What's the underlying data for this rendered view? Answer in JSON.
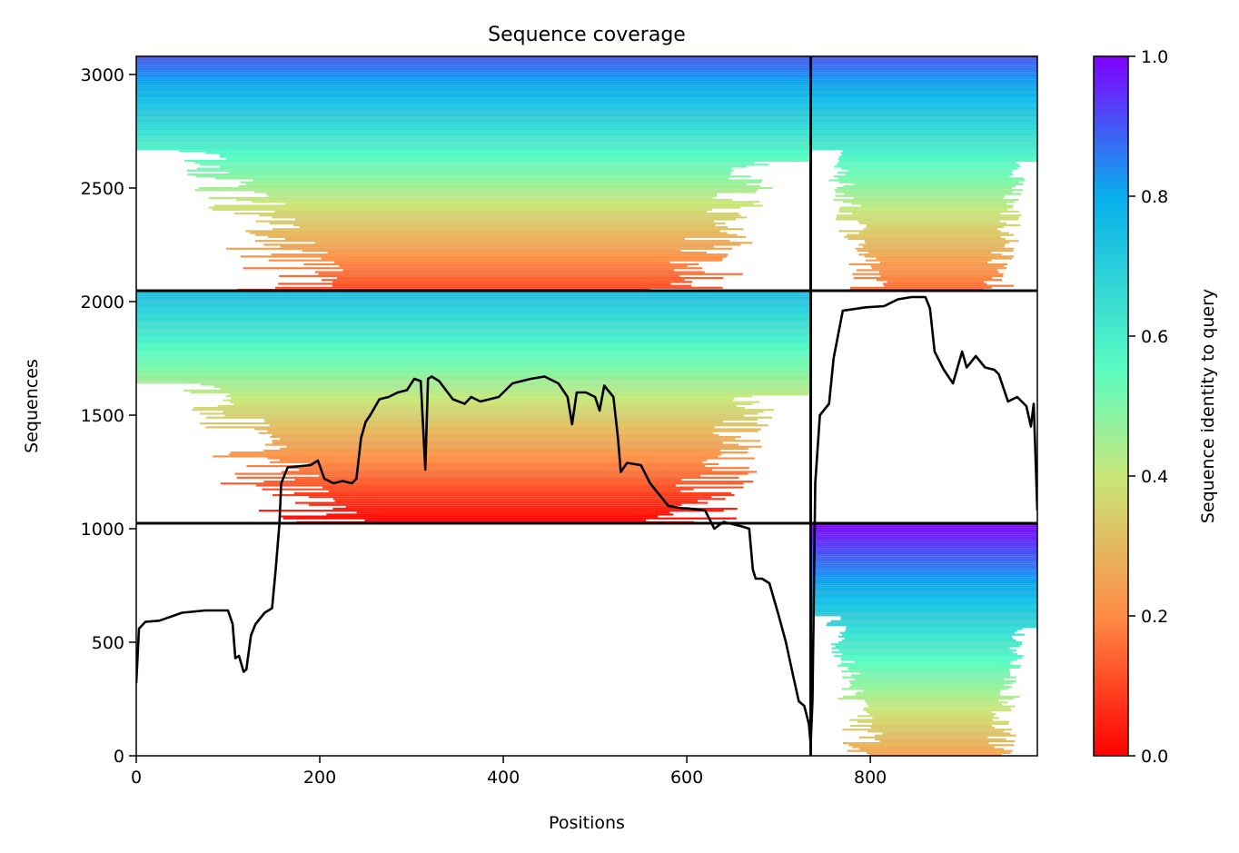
{
  "chart_data": {
    "type": "heatmap",
    "title": "Sequence coverage",
    "xlabel": "Positions",
    "ylabel": "Sequences",
    "xlim": [
      0,
      982
    ],
    "ylim": [
      0,
      3080
    ],
    "x_ticks": [
      0,
      200,
      400,
      600,
      800
    ],
    "y_ticks": [
      0,
      500,
      1000,
      1500,
      2000,
      2500,
      3000
    ],
    "grid": false,
    "colorbar": {
      "label": "Sequence identity to query",
      "range": [
        0.0,
        1.0
      ],
      "ticks": [
        "0.0",
        "0.2",
        "0.4",
        "0.6",
        "0.8",
        "1.0"
      ],
      "colormap": "rainbow_r",
      "colors": [
        "#ff0000",
        "#ff8c45",
        "#c8e67a",
        "#5afcc0",
        "#08aeed",
        "#8000ff"
      ]
    },
    "chain_boundaries": {
      "x": [
        735
      ],
      "y": [
        1024,
        2048
      ]
    },
    "msa_blocks": [
      {
        "name": "chain-A-paired",
        "x_range": [
          0,
          735
        ],
        "y_range": [
          2048,
          3080
        ],
        "identity_range": [
          0.1,
          0.9
        ]
      },
      {
        "name": "chain-B-paired",
        "x_range": [
          735,
          982
        ],
        "y_range": [
          2048,
          3080
        ],
        "identity_range": [
          0.15,
          0.9
        ]
      },
      {
        "name": "chain-A-unpaired",
        "x_range": [
          0,
          735
        ],
        "y_range": [
          1024,
          2048
        ],
        "identity_range": [
          0.0,
          0.75
        ]
      },
      {
        "name": "chain-B-unpaired",
        "x_range": [
          735,
          982
        ],
        "y_range": [
          0,
          1024
        ],
        "identity_range": [
          0.25,
          1.0
        ]
      }
    ],
    "coverage_line": {
      "name": "coverage",
      "color": "#000000",
      "x": [
        0,
        3,
        10,
        25,
        50,
        75,
        100,
        105,
        108,
        112,
        117,
        120,
        125,
        130,
        140,
        148,
        152,
        156,
        158,
        165,
        190,
        198,
        205,
        215,
        225,
        235,
        240,
        245,
        250,
        255,
        265,
        275,
        285,
        295,
        303,
        310,
        315,
        318,
        322,
        330,
        345,
        358,
        365,
        375,
        395,
        410,
        430,
        445,
        460,
        470,
        475,
        480,
        490,
        500,
        505,
        510,
        520,
        525,
        528,
        535,
        550,
        560,
        580,
        595,
        600,
        620,
        630,
        640,
        660,
        668,
        672,
        675,
        682,
        690,
        700,
        708,
        716,
        722,
        728,
        733,
        735,
        737,
        740,
        745,
        755,
        760,
        770,
        795,
        815,
        830,
        845,
        860,
        865,
        870,
        880,
        890,
        900,
        905,
        915,
        925,
        935,
        940,
        950,
        960,
        970,
        975,
        978,
        982
      ],
      "y": [
        320,
        560,
        590,
        595,
        630,
        640,
        640,
        580,
        430,
        440,
        370,
        380,
        530,
        580,
        630,
        650,
        820,
        1020,
        1200,
        1270,
        1280,
        1300,
        1220,
        1200,
        1210,
        1200,
        1220,
        1400,
        1470,
        1500,
        1570,
        1580,
        1600,
        1610,
        1660,
        1650,
        1260,
        1660,
        1670,
        1650,
        1570,
        1550,
        1580,
        1560,
        1580,
        1640,
        1660,
        1670,
        1640,
        1580,
        1460,
        1600,
        1600,
        1580,
        1520,
        1630,
        1580,
        1400,
        1250,
        1290,
        1280,
        1200,
        1100,
        1090,
        1090,
        1080,
        1000,
        1030,
        1010,
        1000,
        820,
        780,
        780,
        760,
        620,
        500,
        350,
        240,
        220,
        140,
        50,
        250,
        1200,
        1500,
        1550,
        1750,
        1960,
        1975,
        1980,
        2010,
        2020,
        2020,
        1970,
        1780,
        1700,
        1640,
        1780,
        1710,
        1760,
        1710,
        1700,
        1680,
        1560,
        1580,
        1540,
        1450,
        1550,
        1080
      ]
    }
  }
}
